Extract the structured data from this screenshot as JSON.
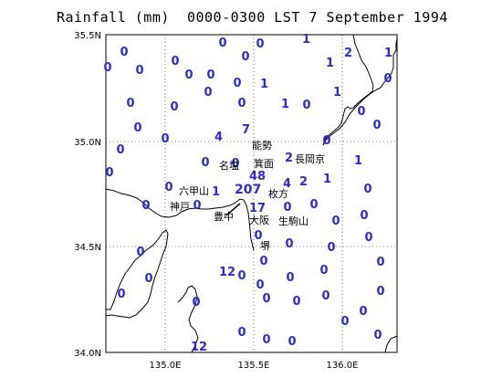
{
  "title": "Rainfall (mm)  0000-0300 LST 7 September 1994",
  "x_ticks": [
    "135.0E",
    "135.5E",
    "136.0E"
  ],
  "y_ticks": [
    "35.5N",
    "35.0N",
    "34.5N",
    "34.0N"
  ],
  "place_names": [
    {
      "id": "noseh",
      "text": "能勢"
    },
    {
      "id": "minoh",
      "text": "箕面"
    },
    {
      "id": "nagaokakyo",
      "text": "長岡京"
    },
    {
      "id": "meien",
      "text": "名塩"
    },
    {
      "id": "rokko",
      "text": "六甲山"
    },
    {
      "id": "hirakata",
      "text": "枚方"
    },
    {
      "id": "kobe",
      "text": "神戸"
    },
    {
      "id": "toyonaka",
      "text": "豊中"
    },
    {
      "id": "osaka",
      "text": "大阪"
    },
    {
      "id": "ikoma",
      "text": "生駒山"
    },
    {
      "id": "sakai",
      "text": "堺"
    }
  ],
  "station_values": [
    {
      "id": "v1",
      "text": "1"
    },
    {
      "id": "v2",
      "text": "2"
    },
    {
      "id": "v3",
      "text": "1"
    },
    {
      "id": "v4",
      "text": "1"
    },
    {
      "id": "v5",
      "text": "1"
    },
    {
      "id": "v6",
      "text": "1"
    },
    {
      "id": "v7",
      "text": "1"
    },
    {
      "id": "v8",
      "text": "4"
    },
    {
      "id": "v9",
      "text": "7"
    },
    {
      "id": "v10",
      "text": "2"
    },
    {
      "id": "v11",
      "text": "1"
    },
    {
      "id": "v12",
      "text": "48"
    },
    {
      "id": "v13",
      "text": "4"
    },
    {
      "id": "v14",
      "text": "2"
    },
    {
      "id": "v15",
      "text": "1"
    },
    {
      "id": "v16",
      "text": "1"
    },
    {
      "id": "v17",
      "text": "207"
    },
    {
      "id": "v18",
      "text": "17"
    },
    {
      "id": "v19",
      "text": "12"
    },
    {
      "id": "v20",
      "text": "12"
    }
  ],
  "zero_label": "0",
  "colors": {
    "values": "#2a2ad6",
    "coast": "#000000",
    "grid": "#000000"
  }
}
